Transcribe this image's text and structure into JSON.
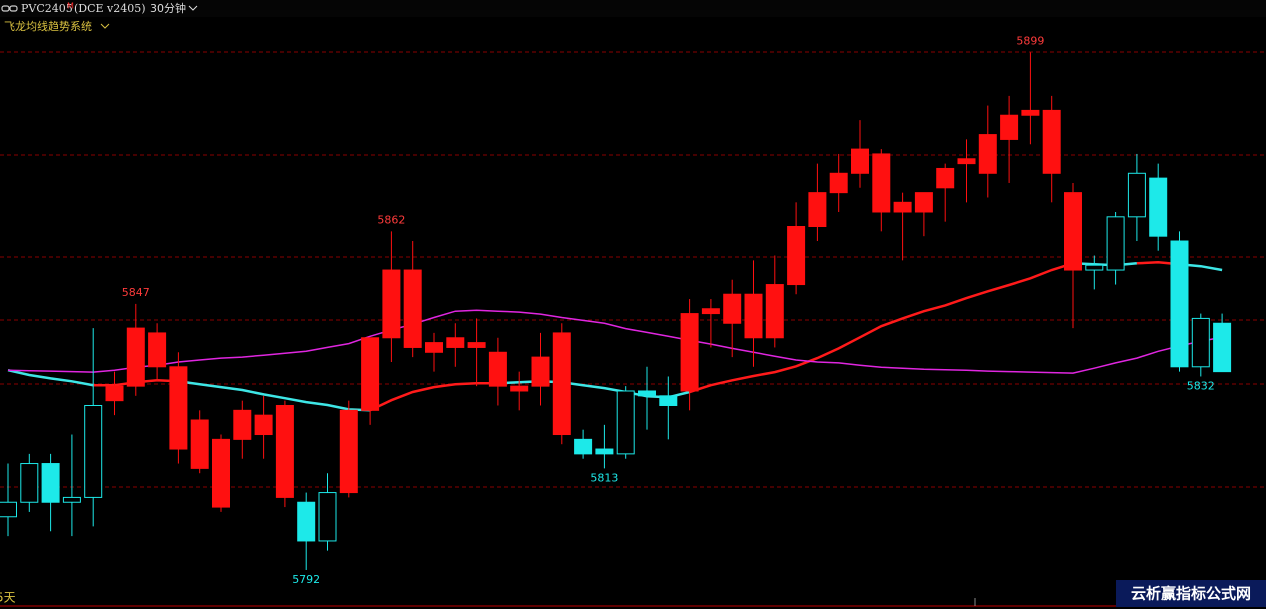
{
  "header": {
    "symbol": "PVC2405",
    "flag": "M",
    "exchange": "(DCE  v2405)",
    "period": "30分钟",
    "indicator": "飞龙均线趋势系统"
  },
  "footer_label": "5天",
  "watermark": "云析赢指标公式网",
  "chart_data": {
    "type": "candlestick",
    "open": [
      5803,
      5806,
      5814,
      5806,
      5807,
      5827,
      5830,
      5834,
      5834,
      5823,
      5819,
      5819,
      5824,
      5826,
      5806,
      5798,
      5808,
      5825,
      5840,
      5854,
      5837,
      5838,
      5839,
      5837,
      5830,
      5830,
      5841,
      5819,
      5817,
      5816,
      5829,
      5828,
      5829,
      5845,
      5843,
      5849,
      5840,
      5851,
      5863,
      5870,
      5874,
      5878,
      5866,
      5866,
      5871,
      5876,
      5874,
      5881,
      5886,
      5887,
      5870,
      5854,
      5854,
      5865,
      5873,
      5860,
      5834,
      5843
    ],
    "high": [
      5814,
      5816,
      5816,
      5820,
      5842,
      5833,
      5847,
      5843,
      5837,
      5825,
      5820,
      5827,
      5828,
      5827,
      5808,
      5812,
      5827,
      5840,
      5862,
      5860,
      5841,
      5843,
      5844,
      5840,
      5833,
      5841,
      5843,
      5821,
      5822,
      5830,
      5834,
      5832,
      5848,
      5848,
      5852,
      5856,
      5857,
      5868,
      5876,
      5878,
      5885,
      5879,
      5870,
      5870,
      5876,
      5881,
      5888,
      5890,
      5899,
      5890,
      5872,
      5857,
      5866,
      5878,
      5876,
      5862,
      5845,
      5845
    ],
    "low": [
      5799,
      5804,
      5800,
      5799,
      5801,
      5824,
      5828,
      5831,
      5814,
      5812,
      5804,
      5815,
      5815,
      5805,
      5792,
      5796,
      5807,
      5822,
      5835,
      5836,
      5833,
      5834,
      5830,
      5826,
      5825,
      5826,
      5818,
      5815,
      5813,
      5815,
      5821,
      5819,
      5825,
      5838,
      5836,
      5834,
      5838,
      5849,
      5860,
      5866,
      5871,
      5862,
      5856,
      5861,
      5864,
      5868,
      5869,
      5872,
      5880,
      5868,
      5842,
      5850,
      5851,
      5860,
      5858,
      5833,
      5832,
      5833
    ],
    "close": [
      5806,
      5814,
      5806,
      5807,
      5826,
      5830,
      5842,
      5841,
      5817,
      5813,
      5805,
      5825,
      5820,
      5807,
      5798,
      5808,
      5825,
      5840,
      5854,
      5838,
      5839,
      5840,
      5838,
      5830,
      5829,
      5836,
      5820,
      5816,
      5816,
      5829,
      5828,
      5826,
      5845,
      5846,
      5849,
      5840,
      5851,
      5863,
      5870,
      5874,
      5879,
      5866,
      5868,
      5870,
      5875,
      5877,
      5882,
      5886,
      5887,
      5874,
      5854,
      5855,
      5865,
      5874,
      5861,
      5834,
      5844,
      5833
    ],
    "colors": [
      "#1de9e9",
      "#1de9e9",
      "#1de9e9",
      "#1de9e9",
      "#1de9e9",
      "#ff1010",
      "#ff1010",
      "#ff1010",
      "#ff1010",
      "#ff1010",
      "#ff1010",
      "#ff1010",
      "#ff1010",
      "#ff1010",
      "#1de9e9",
      "#1de9e9",
      "#ff1010",
      "#ff1010",
      "#ff1010",
      "#ff1010",
      "#ff1010",
      "#ff1010",
      "#ff1010",
      "#ff1010",
      "#ff1010",
      "#ff1010",
      "#ff1010",
      "#1de9e9",
      "#1de9e9",
      "#1de9e9",
      "#1de9e9",
      "#1de9e9",
      "#ff1010",
      "#ff1010",
      "#ff1010",
      "#ff1010",
      "#ff1010",
      "#ff1010",
      "#ff1010",
      "#ff1010",
      "#ff1010",
      "#ff1010",
      "#ff1010",
      "#ff1010",
      "#ff1010",
      "#ff1010",
      "#ff1010",
      "#ff1010",
      "#ff1010",
      "#ff1010",
      "#ff1010",
      "#1de9e9",
      "#1de9e9",
      "#1de9e9",
      "#1de9e9",
      "#1de9e9",
      "#1de9e9",
      "#1de9e9"
    ],
    "high_label_color": "#ff3b3b",
    "low_label_color": "#1de9e9",
    "ylim": [
      5786,
      5903
    ],
    "series": [
      {
        "color": "#3ee6e6",
        "width": 2.5,
        "values": [
          5833.3,
          5832.3,
          5831.6,
          5831.0,
          5830.2,
          5830.2,
          null,
          null,
          5831.0,
          5830.4,
          5829.8,
          5829.2,
          5828.3,
          5827.5,
          5826.7,
          5826.1,
          5825.2,
          5825.0,
          null,
          null,
          null,
          null,
          null,
          5830.6,
          5830.8,
          5831.0,
          5830.8,
          5830.2,
          5829.6,
          5828.8,
          5827.9,
          5827.7,
          5828.8,
          null,
          null,
          null,
          null,
          null,
          null,
          null,
          null,
          null,
          null,
          null,
          null,
          null,
          null,
          null,
          null,
          null,
          5855.4,
          5855.2,
          5855.0,
          5855.4,
          null,
          5855.2,
          5854.8,
          5854.0
        ]
      },
      {
        "color": "#ff1a1a",
        "width": 2.5,
        "values": [
          null,
          null,
          null,
          null,
          5830.2,
          5830.2,
          5830.8,
          5831.2,
          5831.0,
          null,
          null,
          null,
          null,
          null,
          null,
          null,
          null,
          5825.0,
          5827.1,
          5828.8,
          5829.8,
          5830.4,
          5830.6,
          5830.6,
          null,
          null,
          null,
          null,
          null,
          null,
          null,
          null,
          5828.8,
          5830.2,
          5831.2,
          5832.1,
          5832.9,
          5834.1,
          5835.8,
          5837.8,
          5840.1,
          5842.4,
          5844.0,
          5845.5,
          5846.7,
          5848.2,
          5849.6,
          5850.9,
          5852.3,
          5854.0,
          5855.4,
          null,
          null,
          5855.4,
          5855.6,
          5855.2,
          null,
          null
        ]
      },
      {
        "color": "#e026e0",
        "width": 1.5,
        "values": [
          5833.3,
          5833.2,
          5833.1,
          5833.0,
          5832.9,
          5833.3,
          5833.9,
          5834.3,
          5835.0,
          5835.4,
          5835.8,
          5836.0,
          5836.4,
          5836.8,
          5837.2,
          5838.0,
          5838.8,
          5840.3,
          5841.6,
          5842.8,
          5844.2,
          5845.5,
          5845.7,
          5845.5,
          5845.3,
          5844.9,
          5844.2,
          5843.6,
          5843.0,
          5841.9,
          5841.1,
          5840.3,
          5839.5,
          5838.7,
          5837.8,
          5837.0,
          5836.2,
          5835.4,
          5835.0,
          5834.8,
          5834.3,
          5833.9,
          5833.7,
          5833.5,
          5833.4,
          5833.3,
          5833.1,
          5833.0,
          5832.9,
          5832.8,
          5832.7,
          5833.7,
          5834.8,
          5835.8,
          5837.2,
          5838.3,
          5839.3,
          5840.1
        ]
      }
    ]
  }
}
